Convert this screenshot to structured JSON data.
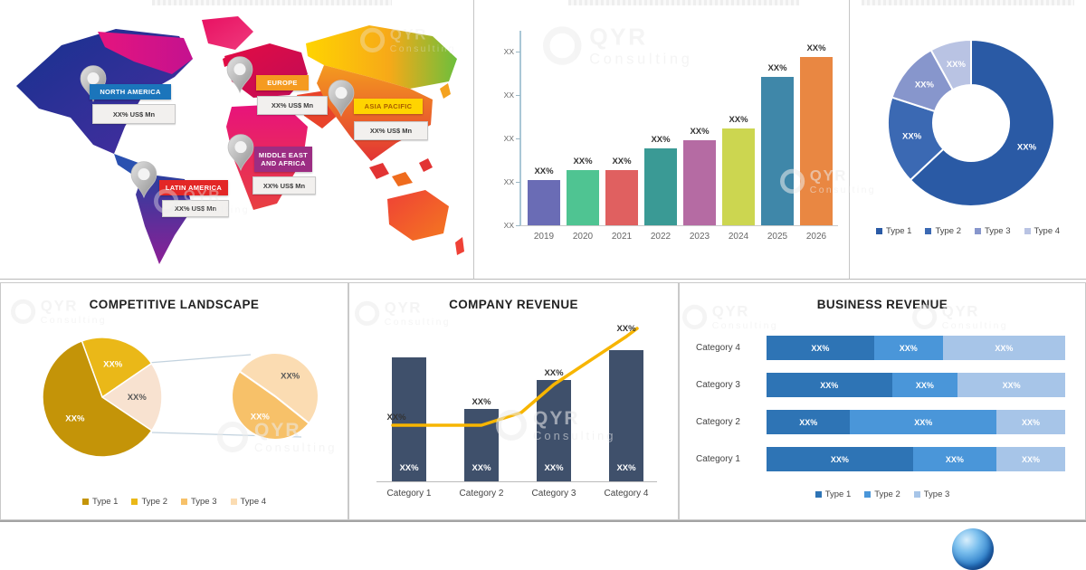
{
  "watermark": {
    "brand": "QYR",
    "sub": "Consulting"
  },
  "chart_data": [
    {
      "id": "regional-market-map",
      "type": "map",
      "regions": [
        {
          "name": "NORTH AMERICA",
          "value": "XX% US$ Mn",
          "label_bg": "#1b75bb",
          "label_text": "#ffffff"
        },
        {
          "name": "EUROPE",
          "value": "XX% US$ Mn",
          "label_bg": "#f59b20",
          "label_text": "#ffffff"
        },
        {
          "name": "ASIA PACIFIC",
          "value": "XX% US$ Mn",
          "label_bg": "#ffd400",
          "label_text": "#a85c00"
        },
        {
          "name": "MIDDLE EAST AND AFRICA",
          "value": "XX% US$ Mn",
          "label_bg": "#9c2d83",
          "label_text": "#ffffff"
        },
        {
          "name": "LATIN AMERICA",
          "value": "XX% US$ Mn",
          "label_bg": "#e32726",
          "label_text": "#ffffff"
        }
      ]
    },
    {
      "id": "market-size-by-year",
      "type": "bar",
      "categories": [
        "2019",
        "2020",
        "2021",
        "2022",
        "2023",
        "2024",
        "2025",
        "2026"
      ],
      "values": [
        23,
        28,
        28,
        39,
        43,
        49,
        75,
        85
      ],
      "data_labels": [
        "XX%",
        "XX%",
        "XX%",
        "XX%",
        "XX%",
        "XX%",
        "XX%",
        "XX%"
      ],
      "y_ticks": [
        "XX",
        "XX",
        "XX",
        "XX",
        "XX"
      ],
      "ylim": [
        0,
        90
      ],
      "grid": false,
      "colors": [
        "#6a6cb5",
        "#4fc492",
        "#e06060",
        "#3a9a95",
        "#b56ba3",
        "#ccd650",
        "#3f87a9",
        "#e98742"
      ]
    },
    {
      "id": "market-share-by-type",
      "type": "donut",
      "values": [
        63,
        17,
        12,
        8
      ],
      "data_labels": [
        "XX%",
        "XX%",
        "XX%",
        "XX%"
      ],
      "legend": [
        "Type 1",
        "Type 2",
        "Type 3",
        "Type 4"
      ],
      "colors": [
        "#2a5aa5",
        "#3b69b3",
        "#8796cc",
        "#b9c3e3"
      ],
      "label_colors": [
        "#ffffff",
        "#ffffff",
        "#ffffff",
        "#ffffff"
      ],
      "legend_position": "bottom"
    },
    {
      "id": "competitive-landscape",
      "type": "pie-of-pie",
      "title": "COMPETITIVE LANDSCAPE",
      "main_values": [
        21,
        19,
        60
      ],
      "main_labels": [
        "XX%",
        "XX%",
        "XX%"
      ],
      "main_colors": [
        "#eab818",
        "#f8e2d0",
        "#c49408"
      ],
      "main_label_colors": [
        "#ffffff",
        "#595959",
        "#ffffff"
      ],
      "main_start_angle": -20,
      "secondary_values": [
        51,
        49
      ],
      "secondary_labels": [
        "XX%",
        "XX%"
      ],
      "secondary_colors": [
        "#fbdcb2",
        "#f7c169"
      ],
      "secondary_label_colors": [
        "#595959",
        "#ffffff"
      ],
      "secondary_start_angle": -55,
      "legend": [
        "Type 1",
        "Type 2",
        "Type 3",
        "Type 4"
      ],
      "legend_colors": [
        "#c49408",
        "#eab818",
        "#f7c169",
        "#fbdcb2"
      ],
      "legend_position": "bottom"
    },
    {
      "id": "company-revenue",
      "type": "bar+line",
      "title": "COMPANY REVENUE",
      "categories": [
        "Category 1",
        "Category 2",
        "Category 3",
        "Category 4"
      ],
      "bar_values": [
        55,
        32,
        45,
        58
      ],
      "bar_labels": [
        "XX%",
        "XX%",
        "XX%",
        "XX%"
      ],
      "line_values": [
        25,
        25,
        43,
        64
      ],
      "line_labels": [
        "XX%",
        "XX%",
        "XX%",
        "XX%"
      ],
      "ylim": [
        0,
        65
      ],
      "bar_color": "#3f506b",
      "line_color": "#f7b500"
    },
    {
      "id": "business-revenue",
      "type": "stacked-bar-h",
      "title": "BUSINESS REVENUE",
      "categories": [
        "Category 4",
        "Category 3",
        "Category 2",
        "Category 1"
      ],
      "series": [
        {
          "name": "Type 1",
          "color": "#2e74b5",
          "values": [
            36,
            42,
            28,
            49
          ]
        },
        {
          "name": "Type 2",
          "color": "#4a96d9",
          "values": [
            23,
            22,
            49,
            28
          ]
        },
        {
          "name": "Type 3",
          "color": "#a7c5e8",
          "values": [
            41,
            36,
            23,
            23
          ]
        }
      ],
      "segment_label": "XX%",
      "legend": [
        "Type 1",
        "Type 2",
        "Type 3"
      ],
      "legend_position": "bottom"
    }
  ]
}
